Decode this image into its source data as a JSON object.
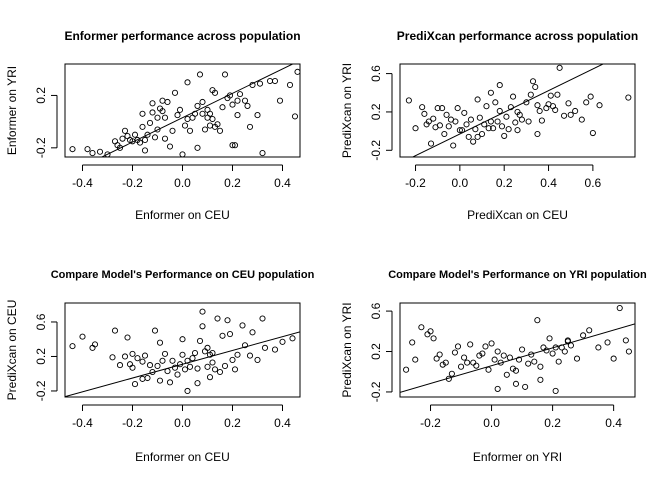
{
  "chart_data": [
    {
      "type": "scatter",
      "title": "Enformer performance across population",
      "xlabel": "Enformer on CEU",
      "ylabel": "Enformer on YRI",
      "xticks": [
        "-0.4",
        "-0.2",
        "0.0",
        "0.2",
        "0.4"
      ],
      "yticks": [
        "-0.2",
        "0.2"
      ],
      "xlim": [
        -0.47,
        0.47
      ],
      "ylim": [
        -0.27,
        0.44
      ],
      "grid": false,
      "fit_line": {
        "intercept": 0.03,
        "slope": 0.93
      },
      "points": [
        [
          -0.44,
          -0.21
        ],
        [
          -0.38,
          -0.21
        ],
        [
          -0.36,
          -0.24
        ],
        [
          -0.33,
          -0.23
        ],
        [
          -0.3,
          -0.25
        ],
        [
          -0.27,
          -0.15
        ],
        [
          -0.26,
          -0.18
        ],
        [
          -0.25,
          -0.2
        ],
        [
          -0.24,
          -0.13
        ],
        [
          -0.23,
          -0.07
        ],
        [
          -0.22,
          -0.11
        ],
        [
          -0.21,
          -0.14
        ],
        [
          -0.2,
          -0.15
        ],
        [
          -0.19,
          -0.1
        ],
        [
          -0.18,
          -0.14
        ],
        [
          -0.17,
          -0.16
        ],
        [
          -0.16,
          -0.04
        ],
        [
          -0.16,
          0.06
        ],
        [
          -0.15,
          -0.14
        ],
        [
          -0.15,
          -0.22
        ],
        [
          -0.14,
          -0.1
        ],
        [
          -0.13,
          -0.01
        ],
        [
          -0.12,
          0.07
        ],
        [
          -0.11,
          -0.12
        ],
        [
          -0.1,
          0.03
        ],
        [
          -0.1,
          -0.06
        ],
        [
          -0.09,
          0.1
        ],
        [
          -0.08,
          0.16
        ],
        [
          -0.08,
          0.08
        ],
        [
          -0.07,
          -0.13
        ],
        [
          -0.07,
          0.03
        ],
        [
          -0.06,
          0.15
        ],
        [
          -0.05,
          -0.19
        ],
        [
          -0.04,
          -0.07
        ],
        [
          -0.03,
          0.22
        ],
        [
          -0.02,
          0.05
        ],
        [
          -0.01,
          0.09
        ],
        [
          0.0,
          -0.25
        ],
        [
          0.01,
          -0.03
        ],
        [
          0.02,
          0.02
        ],
        [
          0.03,
          -0.07
        ],
        [
          0.04,
          0.03
        ],
        [
          0.05,
          0.06
        ],
        [
          0.06,
          -0.2
        ],
        [
          0.06,
          0.12
        ],
        [
          0.07,
          0.36
        ],
        [
          0.08,
          0.06
        ],
        [
          0.08,
          0.15
        ],
        [
          0.09,
          -0.06
        ],
        [
          0.1,
          0.09
        ],
        [
          0.1,
          0.03
        ],
        [
          0.11,
          -0.03
        ],
        [
          0.11,
          0.06
        ],
        [
          0.12,
          0.02
        ],
        [
          0.13,
          -0.04
        ],
        [
          0.13,
          0.22
        ],
        [
          0.14,
          -0.02
        ],
        [
          0.15,
          -0.07
        ],
        [
          0.16,
          0.11
        ],
        [
          0.17,
          0.36
        ],
        [
          0.18,
          0.18
        ],
        [
          0.19,
          0.2
        ],
        [
          0.2,
          0.13
        ],
        [
          0.2,
          -0.18
        ],
        [
          0.21,
          -0.18
        ],
        [
          0.22,
          0.16
        ],
        [
          0.23,
          0.21
        ],
        [
          0.25,
          0.16
        ],
        [
          0.26,
          0.12
        ],
        [
          0.27,
          -0.04
        ],
        [
          0.28,
          0.28
        ],
        [
          0.3,
          0.05
        ],
        [
          0.31,
          0.29
        ],
        [
          0.32,
          -0.24
        ],
        [
          0.35,
          0.31
        ],
        [
          0.37,
          0.31
        ],
        [
          0.39,
          0.16
        ],
        [
          0.43,
          0.28
        ],
        [
          0.45,
          0.04
        ],
        [
          0.46,
          0.38
        ],
        [
          -0.12,
          0.14
        ],
        [
          0.02,
          0.3
        ],
        [
          0.12,
          0.24
        ],
        [
          0.22,
          0.05
        ]
      ]
    },
    {
      "type": "scatter",
      "title": "PrediXcan performance across population",
      "xlabel": "PrediXcan on CEU",
      "ylabel": "PrediXcan on YRI",
      "xticks": [
        "-0.2",
        "0.0",
        "0.2",
        "0.4",
        "0.6"
      ],
      "yticks": [
        "-0.2",
        "0.2",
        "0.6"
      ],
      "xlim": [
        -0.27,
        0.79
      ],
      "ylim": [
        -0.27,
        0.7
      ],
      "grid": false,
      "fit_line": {
        "intercept": -0.03,
        "slope": 1.13
      },
      "points": [
        [
          -0.23,
          0.32
        ],
        [
          -0.2,
          0.03
        ],
        [
          -0.17,
          0.25
        ],
        [
          -0.16,
          0.18
        ],
        [
          -0.15,
          0.07
        ],
        [
          -0.14,
          0.1
        ],
        [
          -0.13,
          -0.13
        ],
        [
          -0.12,
          0.13
        ],
        [
          -0.11,
          0.04
        ],
        [
          -0.1,
          0.24
        ],
        [
          -0.09,
          0.06
        ],
        [
          -0.08,
          0.24
        ],
        [
          -0.07,
          -0.03
        ],
        [
          -0.06,
          0.17
        ],
        [
          -0.05,
          0.05
        ],
        [
          -0.04,
          0.12
        ],
        [
          -0.03,
          -0.15
        ],
        [
          -0.02,
          0.1
        ],
        [
          -0.01,
          0.24
        ],
        [
          0.0,
          0.01
        ],
        [
          0.01,
          0.01
        ],
        [
          0.02,
          0.19
        ],
        [
          0.03,
          0.07
        ],
        [
          0.04,
          -0.06
        ],
        [
          0.05,
          0.12
        ],
        [
          0.06,
          -0.11
        ],
        [
          0.07,
          0.02
        ],
        [
          0.08,
          -0.06
        ],
        [
          0.09,
          0.14
        ],
        [
          0.1,
          -0.03
        ],
        [
          0.11,
          0.07
        ],
        [
          0.12,
          0.26
        ],
        [
          0.13,
          0.03
        ],
        [
          0.14,
          0.1
        ],
        [
          0.14,
          0.4
        ],
        [
          0.15,
          0.03
        ],
        [
          0.16,
          0.3
        ],
        [
          0.17,
          0.1
        ],
        [
          0.18,
          0.21
        ],
        [
          0.19,
          0.05
        ],
        [
          0.2,
          -0.05
        ],
        [
          0.21,
          0.15
        ],
        [
          0.22,
          0.02
        ],
        [
          0.23,
          0.25
        ],
        [
          0.24,
          0.36
        ],
        [
          0.25,
          0.09
        ],
        [
          0.26,
          0.2
        ],
        [
          0.27,
          0.17
        ],
        [
          0.28,
          0.12
        ],
        [
          0.3,
          0.3
        ],
        [
          0.31,
          0.1
        ],
        [
          0.32,
          0.38
        ],
        [
          0.33,
          0.52
        ],
        [
          0.34,
          0.46
        ],
        [
          0.35,
          0.27
        ],
        [
          0.36,
          0.21
        ],
        [
          0.37,
          0.11
        ],
        [
          0.39,
          0.24
        ],
        [
          0.4,
          0.28
        ],
        [
          0.41,
          0.37
        ],
        [
          0.42,
          0.26
        ],
        [
          0.43,
          0.22
        ],
        [
          0.44,
          0.38
        ],
        [
          0.45,
          0.66
        ],
        [
          0.47,
          0.16
        ],
        [
          0.49,
          0.29
        ],
        [
          0.5,
          0.17
        ],
        [
          0.52,
          0.21
        ],
        [
          0.55,
          0.12
        ],
        [
          0.57,
          0.3
        ],
        [
          0.59,
          0.36
        ],
        [
          0.6,
          -0.02
        ],
        [
          0.63,
          0.27
        ],
        [
          0.76,
          0.35
        ],
        [
          0.08,
          0.33
        ],
        [
          0.26,
          0.01
        ],
        [
          0.35,
          -0.03
        ],
        [
          0.18,
          0.48
        ]
      ]
    },
    {
      "type": "scatter",
      "title": "Compare Model's Performance on CEU population",
      "xlabel": "Enformer on CEU",
      "ylabel": "PrediXcan on CEU",
      "xticks": [
        "-0.4",
        "-0.2",
        "0.0",
        "0.2",
        "0.4"
      ],
      "yticks": [
        "-0.2",
        "0.2",
        "0.6"
      ],
      "xlim": [
        -0.47,
        0.47
      ],
      "ylim": [
        -0.27,
        0.82
      ],
      "grid": false,
      "fit_line": {
        "intercept": 0.11,
        "slope": 0.8
      },
      "points": [
        [
          -0.44,
          0.32
        ],
        [
          -0.4,
          0.43
        ],
        [
          -0.36,
          0.3
        ],
        [
          -0.35,
          0.34
        ],
        [
          -0.28,
          0.19
        ],
        [
          -0.27,
          0.5
        ],
        [
          -0.25,
          0.1
        ],
        [
          -0.23,
          0.2
        ],
        [
          -0.22,
          0.42
        ],
        [
          -0.21,
          0.11
        ],
        [
          -0.2,
          0.23
        ],
        [
          -0.2,
          0.07
        ],
        [
          -0.19,
          -0.12
        ],
        [
          -0.18,
          0.18
        ],
        [
          -0.16,
          0.14
        ],
        [
          -0.15,
          0.21
        ],
        [
          -0.14,
          -0.05
        ],
        [
          -0.13,
          0.1
        ],
        [
          -0.12,
          0.02
        ],
        [
          -0.11,
          0.5
        ],
        [
          -0.1,
          0.09
        ],
        [
          -0.09,
          -0.08
        ],
        [
          -0.08,
          0.15
        ],
        [
          -0.07,
          0.23
        ],
        [
          -0.06,
          0.03
        ],
        [
          -0.05,
          -0.1
        ],
        [
          -0.04,
          0.15
        ],
        [
          -0.03,
          0.07
        ],
        [
          -0.02,
          -0.01
        ],
        [
          -0.01,
          0.11
        ],
        [
          0.0,
          0.22
        ],
        [
          0.01,
          0.05
        ],
        [
          0.02,
          0.15
        ],
        [
          0.03,
          0.08
        ],
        [
          0.04,
          0.18
        ],
        [
          0.05,
          0.24
        ],
        [
          0.06,
          -0.11
        ],
        [
          0.07,
          0.38
        ],
        [
          0.08,
          0.55
        ],
        [
          0.08,
          0.72
        ],
        [
          0.09,
          0.26
        ],
        [
          0.1,
          0.08
        ],
        [
          0.1,
          0.3
        ],
        [
          0.11,
          0.22
        ],
        [
          0.11,
          -0.04
        ],
        [
          0.12,
          0.24
        ],
        [
          0.13,
          0.05
        ],
        [
          0.14,
          0.64
        ],
        [
          0.15,
          0.02
        ],
        [
          0.16,
          0.44
        ],
        [
          0.17,
          0.09
        ],
        [
          0.18,
          0.62
        ],
        [
          0.19,
          0.46
        ],
        [
          0.2,
          0.16
        ],
        [
          0.21,
          0.05
        ],
        [
          0.22,
          0.22
        ],
        [
          0.24,
          0.56
        ],
        [
          0.25,
          0.33
        ],
        [
          0.27,
          0.21
        ],
        [
          0.28,
          0.48
        ],
        [
          0.3,
          0.16
        ],
        [
          0.32,
          0.64
        ],
        [
          0.33,
          0.3
        ],
        [
          0.37,
          0.28
        ],
        [
          0.4,
          0.37
        ],
        [
          0.44,
          0.41
        ],
        [
          -0.09,
          0.36
        ],
        [
          0.0,
          0.4
        ],
        [
          0.12,
          0.13
        ],
        [
          0.02,
          -0.2
        ],
        [
          -0.16,
          -0.06
        ],
        [
          0.06,
          0.06
        ]
      ]
    },
    {
      "type": "scatter",
      "title": "Compare Model's Performance on YRI population",
      "xlabel": "Enformer on YRI",
      "ylabel": "PrediXcan on YRI",
      "xticks": [
        "-0.2",
        "0.0",
        "0.2",
        "0.4"
      ],
      "yticks": [
        "-0.2",
        "0.2",
        "0.6"
      ],
      "xlim": [
        -0.3,
        0.47
      ],
      "ylim": [
        -0.25,
        0.68
      ],
      "grid": false,
      "fit_line": {
        "intercept": 0.06,
        "slope": 0.88
      },
      "points": [
        [
          -0.28,
          0.02
        ],
        [
          -0.26,
          0.29
        ],
        [
          -0.25,
          0.12
        ],
        [
          -0.23,
          0.44
        ],
        [
          -0.21,
          0.37
        ],
        [
          -0.2,
          0.4
        ],
        [
          -0.19,
          0.33
        ],
        [
          -0.18,
          0.13
        ],
        [
          -0.16,
          0.07
        ],
        [
          -0.15,
          0.09
        ],
        [
          -0.14,
          -0.07
        ],
        [
          -0.13,
          -0.02
        ],
        [
          -0.12,
          0.19
        ],
        [
          -0.11,
          0.25
        ],
        [
          -0.1,
          0.05
        ],
        [
          -0.09,
          0.14
        ],
        [
          -0.08,
          0.09
        ],
        [
          -0.07,
          0.27
        ],
        [
          -0.06,
          0.09
        ],
        [
          -0.05,
          0.06
        ],
        [
          -0.04,
          0.16
        ],
        [
          -0.03,
          0.18
        ],
        [
          -0.02,
          0.25
        ],
        [
          -0.01,
          0.02
        ],
        [
          0.0,
          0.28
        ],
        [
          0.01,
          0.12
        ],
        [
          0.02,
          0.2
        ],
        [
          0.03,
          0.09
        ],
        [
          0.04,
          0.16
        ],
        [
          0.05,
          -0.03
        ],
        [
          0.06,
          0.14
        ],
        [
          0.07,
          0.03
        ],
        [
          0.08,
          -0.12
        ],
        [
          0.09,
          0.12
        ],
        [
          0.1,
          0.22
        ],
        [
          0.11,
          -0.15
        ],
        [
          0.12,
          0.08
        ],
        [
          0.13,
          0.17
        ],
        [
          0.14,
          0.1
        ],
        [
          0.15,
          0.51
        ],
        [
          0.16,
          0.05
        ],
        [
          0.17,
          0.24
        ],
        [
          0.18,
          0.21
        ],
        [
          0.19,
          0.33
        ],
        [
          0.2,
          0.18
        ],
        [
          0.21,
          0.24
        ],
        [
          0.22,
          0.1
        ],
        [
          0.23,
          0.24
        ],
        [
          0.24,
          0.2
        ],
        [
          0.25,
          0.3
        ],
        [
          0.26,
          0.26
        ],
        [
          0.28,
          0.13
        ],
        [
          0.3,
          0.36
        ],
        [
          0.32,
          0.41
        ],
        [
          0.35,
          0.24
        ],
        [
          0.38,
          0.29
        ],
        [
          0.4,
          0.13
        ],
        [
          0.42,
          0.63
        ],
        [
          0.44,
          0.31
        ],
        [
          0.45,
          0.2
        ],
        [
          -0.17,
          0.17
        ],
        [
          0.02,
          -0.17
        ],
        [
          0.08,
          0.01
        ],
        [
          0.16,
          -0.08
        ],
        [
          0.21,
          -0.19
        ],
        [
          0.25,
          0.31
        ]
      ]
    }
  ]
}
